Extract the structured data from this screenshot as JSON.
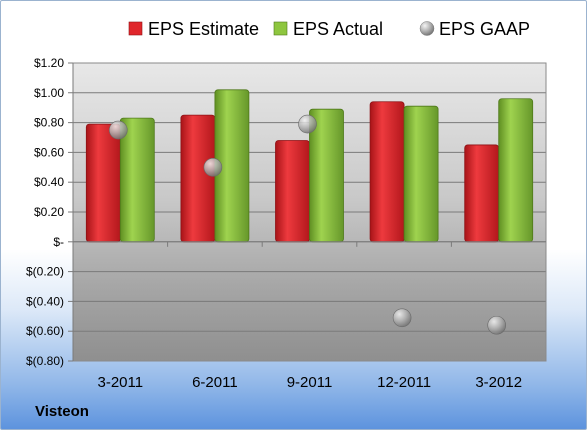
{
  "company": "Visteon",
  "chart_data": {
    "type": "bar",
    "categories": [
      "3-2011",
      "6-2011",
      "9-2011",
      "12-2011",
      "3-2012"
    ],
    "series": [
      {
        "name": "EPS Estimate",
        "kind": "bar",
        "color": "#e0262b",
        "values": [
          0.79,
          0.85,
          0.68,
          0.94,
          0.65
        ]
      },
      {
        "name": "EPS Actual",
        "kind": "bar",
        "color": "#8ec63f",
        "values": [
          0.83,
          1.02,
          0.89,
          0.91,
          0.96
        ]
      },
      {
        "name": "EPS GAAP",
        "kind": "point",
        "color": "#a9a9a9",
        "values": [
          0.75,
          0.5,
          0.79,
          -0.51,
          -0.56
        ]
      }
    ],
    "ylim": [
      -0.8,
      1.2
    ],
    "y_ticks": [
      1.2,
      1.0,
      0.8,
      0.6,
      0.4,
      0.2,
      0,
      -0.2,
      -0.4,
      -0.6,
      -0.8
    ],
    "y_tick_labels": [
      "$1.20",
      "$1.00",
      "$0.80",
      "$0.60",
      "$0.40",
      "$0.20",
      "$-",
      "$(0.20)",
      "$(0.40)",
      "$(0.60)",
      "$(0.80)"
    ],
    "grid": true,
    "legend_position": "top"
  }
}
